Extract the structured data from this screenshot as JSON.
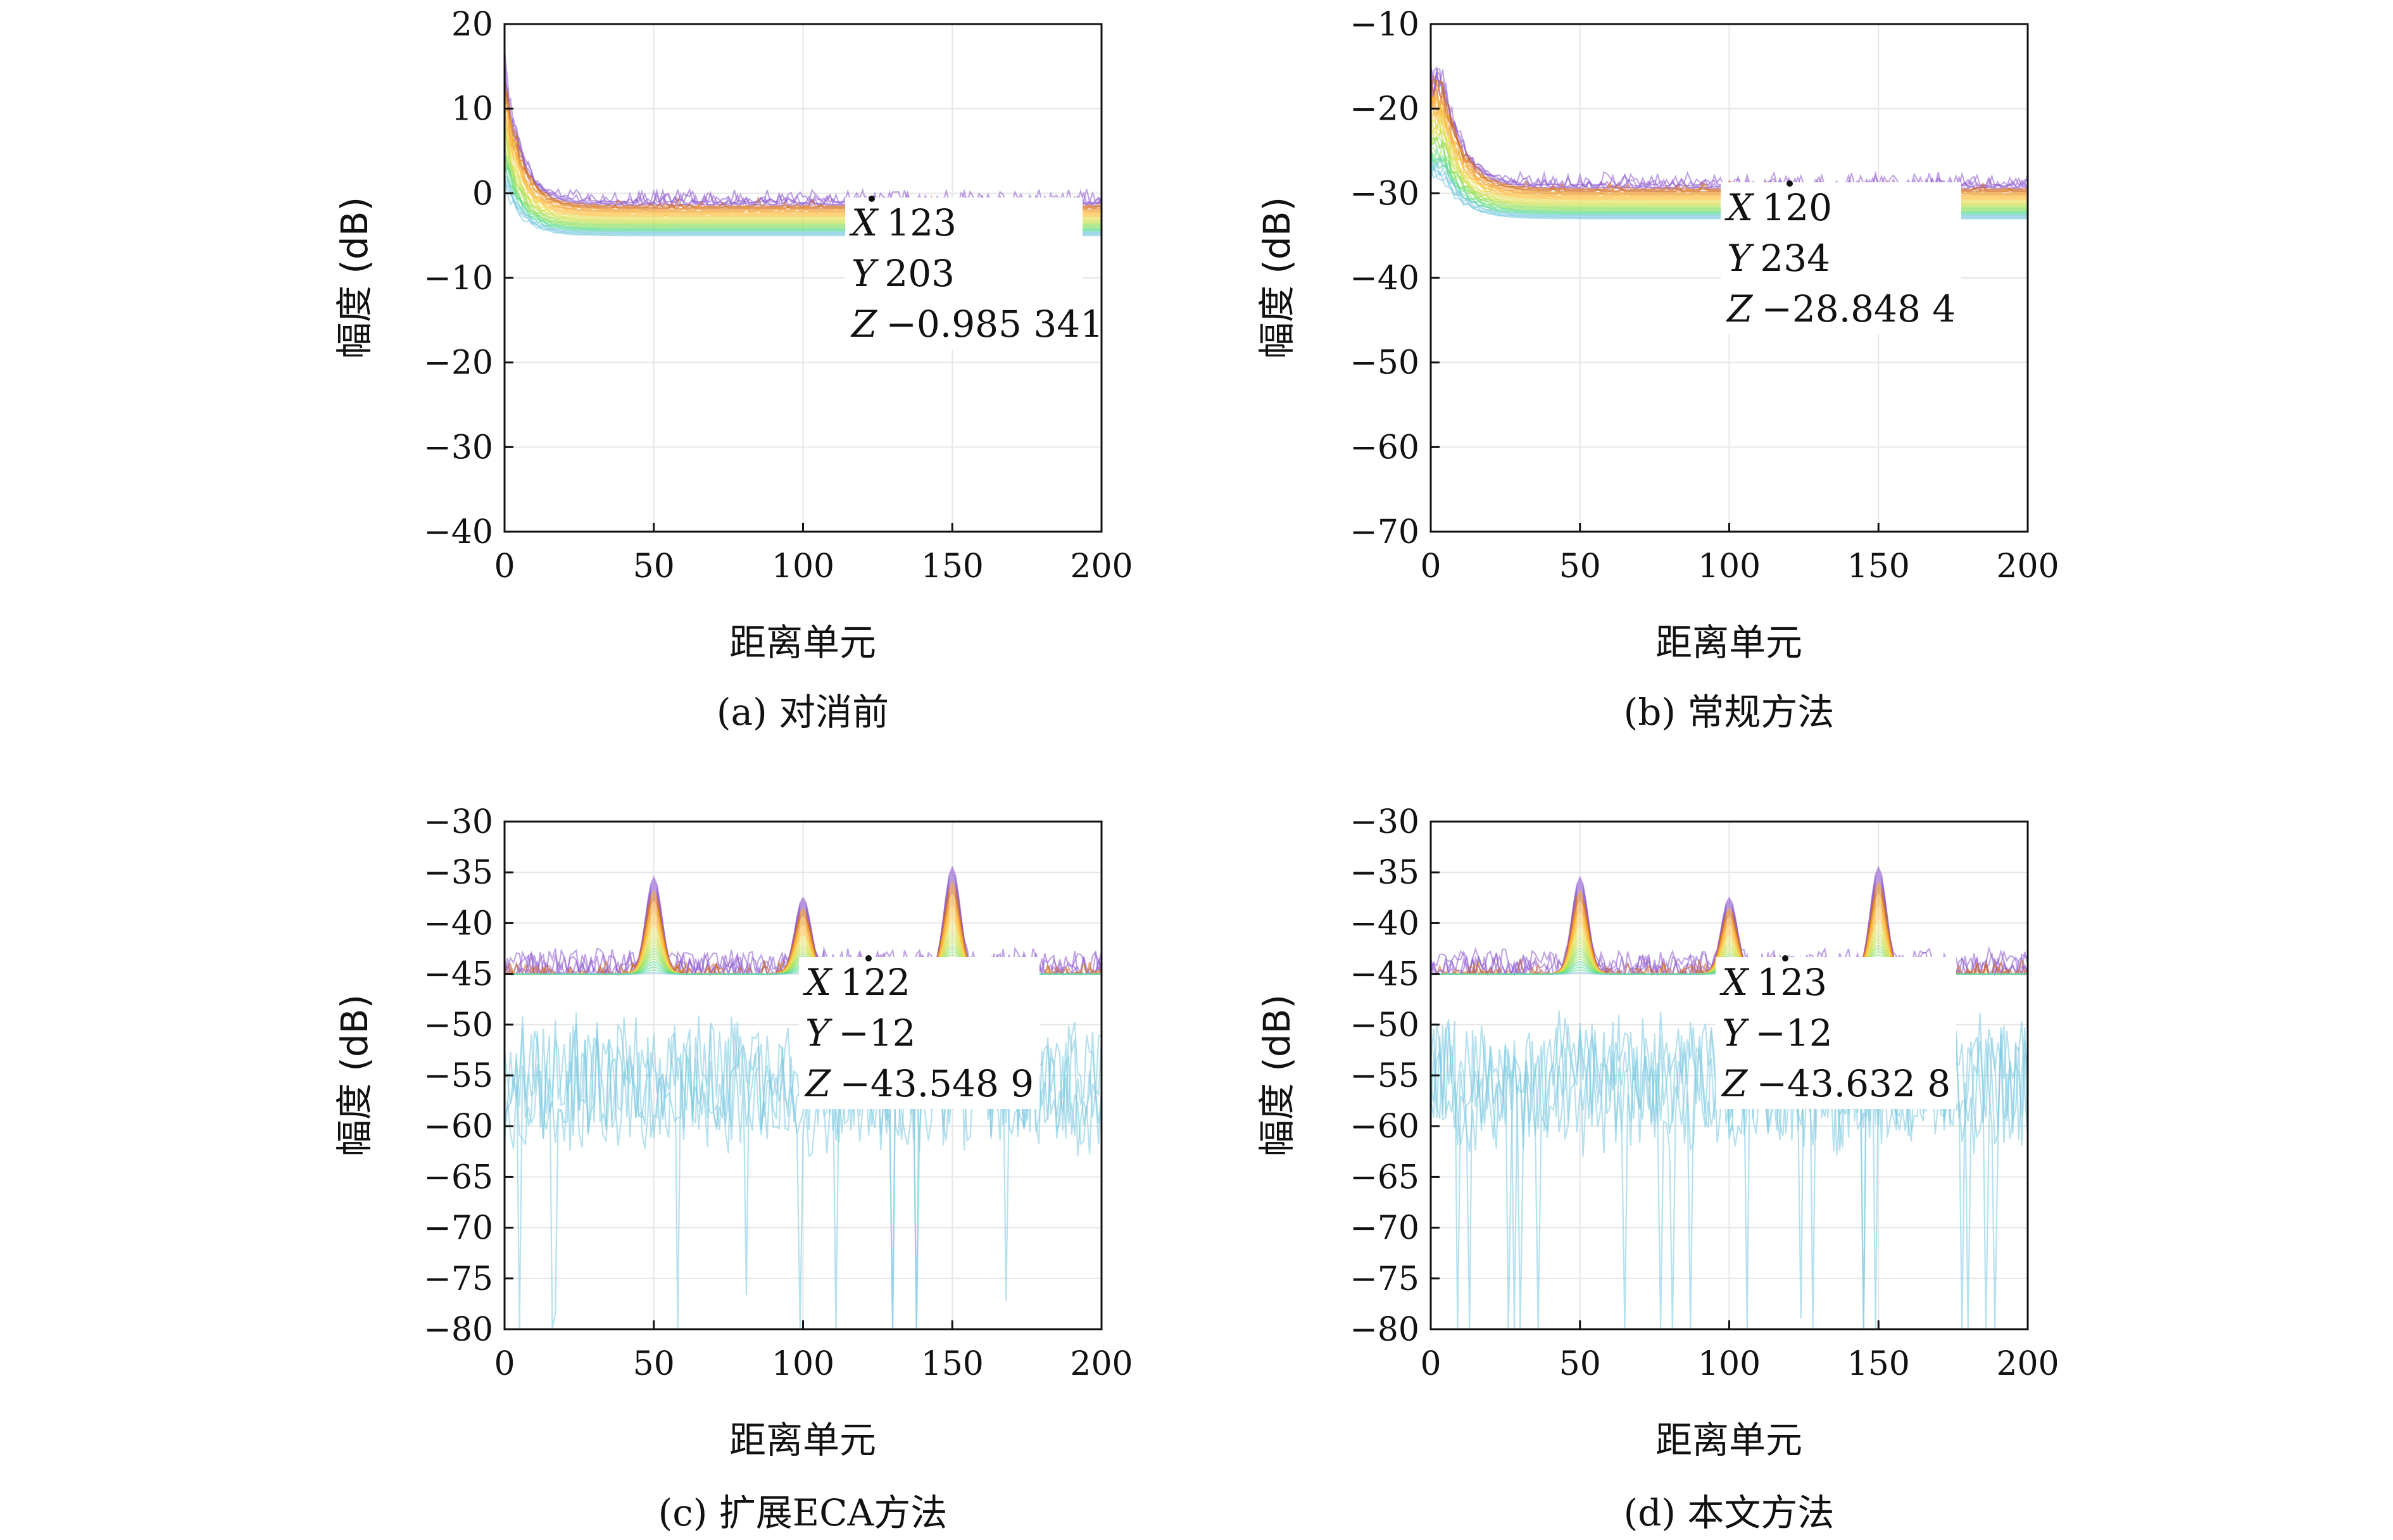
{
  "chart_data": [
    {
      "panel": "a",
      "type": "line",
      "caption": "(a) 对消前",
      "xlabel": "距离单元",
      "ylabel": "幅度 (dB)",
      "xlim": [
        0,
        200
      ],
      "ylim": [
        -40,
        20
      ],
      "xticks": [
        0,
        50,
        100,
        150,
        200
      ],
      "yticks": [
        -40,
        -30,
        -20,
        -10,
        0,
        10,
        20
      ],
      "grid": true,
      "series_count": 40,
      "floor_db": -1,
      "noise_depth_db": 18,
      "notch_depth_db": 33,
      "direct_path_peak": {
        "x": 0,
        "y": 17,
        "width": 6
      },
      "target_peaks": [],
      "colors": [
        "#8e5ad0",
        "#d2691e",
        "#f0a030",
        "#ffc040",
        "#e8e060",
        "#c8e050",
        "#8ee060",
        "#58d890",
        "#7ac8e0"
      ],
      "datatip": {
        "x_label": "X",
        "x_value": "123",
        "y_label": "Y",
        "y_value": "203",
        "z_label": "Z",
        "z_value": "−0.985 341"
      }
    },
    {
      "panel": "b",
      "type": "line",
      "caption": "(b) 常规方法",
      "xlabel": "距离单元",
      "ylabel": "幅度 (dB)",
      "xlim": [
        0,
        200
      ],
      "ylim": [
        -70,
        -10
      ],
      "xticks": [
        0,
        50,
        100,
        150,
        200
      ],
      "yticks": [
        -70,
        -60,
        -50,
        -40,
        -30,
        -20,
        -10
      ],
      "grid": true,
      "series_count": 40,
      "floor_db": -29,
      "noise_depth_db": 18,
      "notch_depth_db": 31,
      "direct_path_peak": {
        "x": 4,
        "y": -14,
        "width": 7
      },
      "target_peaks": [],
      "colors": [
        "#8e5ad0",
        "#d2691e",
        "#f0a030",
        "#ffc040",
        "#e8e060",
        "#c8e050",
        "#8ee060",
        "#58d890",
        "#7ac8e0"
      ],
      "datatip": {
        "x_label": "X",
        "x_value": "120",
        "y_label": "Y",
        "y_value": "234",
        "z_label": "Z",
        "z_value": "−28.848 4"
      }
    },
    {
      "panel": "c",
      "type": "line",
      "caption": "(c) 扩展ECA方法",
      "xlabel": "距离单元",
      "ylabel": "幅度 (dB)",
      "xlim": [
        0,
        200
      ],
      "ylim": [
        -80,
        -30
      ],
      "xticks": [
        0,
        50,
        100,
        150,
        200
      ],
      "yticks": [
        -80,
        -75,
        -70,
        -65,
        -60,
        -55,
        -50,
        -45,
        -40,
        -35,
        -30
      ],
      "grid": true,
      "series_count": 40,
      "floor_db": -44,
      "noise_depth_db": 18,
      "notch_depth_db": 31,
      "direct_path_peak": null,
      "target_peaks": [
        {
          "x": 50,
          "y": -34.5
        },
        {
          "x": 100,
          "y": -36.5
        },
        {
          "x": 150,
          "y": -33.5
        }
      ],
      "colors": [
        "#8e5ad0",
        "#d2691e",
        "#f0a030",
        "#ffc040",
        "#e8e060",
        "#c8e050",
        "#8ee060",
        "#58d890",
        "#7ac8e0"
      ],
      "datatip": {
        "x_label": "X",
        "x_value": "122",
        "y_label": "Y",
        "y_value": "−12",
        "z_label": "Z",
        "z_value": "−43.548 9"
      }
    },
    {
      "panel": "d",
      "type": "line",
      "caption": "(d) 本文方法",
      "xlabel": "距离单元",
      "ylabel": "幅度 (dB)",
      "xlim": [
        0,
        200
      ],
      "ylim": [
        -80,
        -30
      ],
      "xticks": [
        0,
        50,
        100,
        150,
        200
      ],
      "yticks": [
        -80,
        -75,
        -70,
        -65,
        -60,
        -55,
        -50,
        -45,
        -40,
        -35,
        -30
      ],
      "grid": true,
      "series_count": 40,
      "floor_db": -44,
      "noise_depth_db": 18,
      "notch_depth_db": 35,
      "direct_path_peak": null,
      "target_peaks": [
        {
          "x": 50,
          "y": -34.5
        },
        {
          "x": 100,
          "y": -36.5
        },
        {
          "x": 150,
          "y": -33.5
        }
      ],
      "colors": [
        "#8e5ad0",
        "#d2691e",
        "#f0a030",
        "#ffc040",
        "#e8e060",
        "#c8e050",
        "#8ee060",
        "#58d890",
        "#7ac8e0"
      ],
      "datatip": {
        "x_label": "X",
        "x_value": "123",
        "y_label": "Y",
        "y_value": "−12",
        "z_label": "Z",
        "z_value": "−43.632 8"
      }
    }
  ]
}
